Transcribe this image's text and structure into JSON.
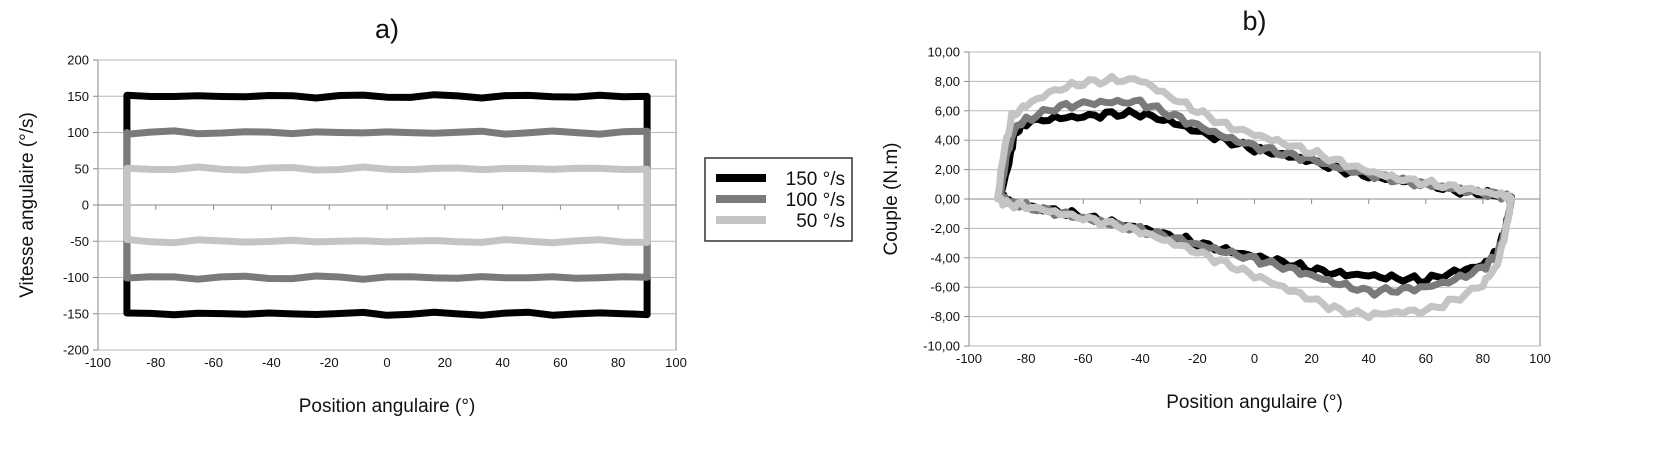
{
  "chart_data": [
    {
      "type": "line",
      "title": "a)",
      "xlabel": "Position angulaire (°)",
      "ylabel": "Vitesse angulaire (°/s)",
      "xlim": [
        -100,
        100
      ],
      "ylim": [
        -200,
        200
      ],
      "x_ticks": [
        -100,
        -80,
        -60,
        -40,
        -20,
        0,
        20,
        40,
        60,
        80,
        100
      ],
      "y_ticks": [
        -200,
        -150,
        -100,
        -50,
        0,
        50,
        100,
        150,
        200
      ],
      "x_tick_labels": [
        "-100",
        "-80",
        "-60",
        "-40",
        "-20",
        "0",
        "20",
        "40",
        "60",
        "80",
        "100"
      ],
      "y_tick_labels": [
        "-200",
        "-150",
        "-100",
        "-50",
        "0",
        "50",
        "100",
        "150",
        "200"
      ],
      "grid": true,
      "legend_position": "right",
      "series": [
        {
          "name": "150 °/s",
          "color": "#000000",
          "points": [
            [
              -90,
              150
            ],
            [
              90,
              150
            ],
            [
              90,
              -150
            ],
            [
              -90,
              -150
            ],
            [
              -90,
              150
            ]
          ]
        },
        {
          "name": "100 °/s",
          "color": "#7a7a7a",
          "points": [
            [
              -90,
              100
            ],
            [
              90,
              100
            ],
            [
              90,
              -100
            ],
            [
              -90,
              -100
            ],
            [
              -90,
              100
            ]
          ]
        },
        {
          "name": "50 °/s",
          "color": "#c4c4c4",
          "points": [
            [
              -90,
              50
            ],
            [
              90,
              50
            ],
            [
              90,
              -50
            ],
            [
              -90,
              -50
            ],
            [
              -90,
              50
            ]
          ]
        }
      ]
    },
    {
      "type": "line",
      "title": "b)",
      "xlabel": "Position angulaire (°)",
      "ylabel": "Couple (N.m)",
      "xlim": [
        -100,
        100
      ],
      "ylim": [
        -10,
        10
      ],
      "x_ticks": [
        -100,
        -80,
        -60,
        -40,
        -20,
        0,
        20,
        40,
        60,
        80,
        100
      ],
      "y_ticks": [
        -10,
        -8,
        -6,
        -4,
        -2,
        0,
        2,
        4,
        6,
        8,
        10
      ],
      "x_tick_labels": [
        "-100",
        "-80",
        "-60",
        "-40",
        "-20",
        "0",
        "20",
        "40",
        "60",
        "80",
        "100"
      ],
      "y_tick_labels": [
        "-10,00",
        "-8,00",
        "-6,00",
        "-4,00",
        "-2,00",
        "0,00",
        "2,00",
        "4,00",
        "6,00",
        "8,00",
        "10,00"
      ],
      "grid": true,
      "series": [
        {
          "name": "150 °/s",
          "color": "#000000",
          "points": [
            [
              -89,
              0.2
            ],
            [
              -86,
              2.5
            ],
            [
              -84,
              4.5
            ],
            [
              -80,
              5.2
            ],
            [
              -70,
              5.5
            ],
            [
              -60,
              5.6
            ],
            [
              -50,
              5.8
            ],
            [
              -40,
              5.8
            ],
            [
              -30,
              5.3
            ],
            [
              -20,
              4.6
            ],
            [
              -10,
              4.0
            ],
            [
              0,
              3.4
            ],
            [
              10,
              3.0
            ],
            [
              20,
              2.6
            ],
            [
              30,
              2.0
            ],
            [
              40,
              1.6
            ],
            [
              50,
              1.3
            ],
            [
              60,
              1.0
            ],
            [
              70,
              0.6
            ],
            [
              80,
              0.4
            ],
            [
              88,
              0.2
            ],
            [
              90,
              0.0
            ],
            [
              88,
              -2.0
            ],
            [
              85,
              -3.6
            ],
            [
              80,
              -4.5
            ],
            [
              70,
              -5.0
            ],
            [
              60,
              -5.5
            ],
            [
              50,
              -5.4
            ],
            [
              40,
              -5.2
            ],
            [
              30,
              -5.1
            ],
            [
              20,
              -4.8
            ],
            [
              10,
              -4.3
            ],
            [
              0,
              -3.9
            ],
            [
              -10,
              -3.5
            ],
            [
              -20,
              -3.0
            ],
            [
              -30,
              -2.5
            ],
            [
              -40,
              -2.0
            ],
            [
              -50,
              -1.6
            ],
            [
              -60,
              -1.2
            ],
            [
              -70,
              -0.8
            ],
            [
              -80,
              -0.5
            ],
            [
              -86,
              -0.2
            ],
            [
              -89,
              0.2
            ]
          ]
        },
        {
          "name": "100 °/s",
          "color": "#7a7a7a",
          "points": [
            [
              -89,
              0.3
            ],
            [
              -87,
              2.8
            ],
            [
              -84,
              4.8
            ],
            [
              -80,
              5.4
            ],
            [
              -70,
              6.2
            ],
            [
              -60,
              6.5
            ],
            [
              -50,
              6.6
            ],
            [
              -40,
              6.6
            ],
            [
              -30,
              5.8
            ],
            [
              -20,
              5.0
            ],
            [
              -10,
              4.2
            ],
            [
              0,
              3.6
            ],
            [
              10,
              3.1
            ],
            [
              20,
              2.7
            ],
            [
              30,
              2.1
            ],
            [
              40,
              1.7
            ],
            [
              50,
              1.3
            ],
            [
              60,
              1.0
            ],
            [
              70,
              0.7
            ],
            [
              80,
              0.4
            ],
            [
              88,
              0.2
            ],
            [
              90,
              0.0
            ],
            [
              88,
              -2.0
            ],
            [
              85,
              -3.8
            ],
            [
              80,
              -4.7
            ],
            [
              70,
              -5.5
            ],
            [
              60,
              -6.0
            ],
            [
              50,
              -6.2
            ],
            [
              40,
              -6.3
            ],
            [
              30,
              -5.8
            ],
            [
              20,
              -5.2
            ],
            [
              10,
              -4.6
            ],
            [
              0,
              -4.1
            ],
            [
              -10,
              -3.6
            ],
            [
              -20,
              -3.1
            ],
            [
              -30,
              -2.6
            ],
            [
              -40,
              -2.1
            ],
            [
              -50,
              -1.7
            ],
            [
              -60,
              -1.3
            ],
            [
              -70,
              -0.9
            ],
            [
              -80,
              -0.5
            ],
            [
              -86,
              -0.2
            ],
            [
              -89,
              0.3
            ]
          ]
        },
        {
          "name": "50 °/s",
          "color": "#c4c4c4",
          "points": [
            [
              -90,
              0.0
            ],
            [
              -88,
              3.0
            ],
            [
              -85,
              5.6
            ],
            [
              -80,
              6.4
            ],
            [
              -70,
              7.4
            ],
            [
              -60,
              7.9
            ],
            [
              -50,
              8.1
            ],
            [
              -40,
              8.1
            ],
            [
              -30,
              7.0
            ],
            [
              -20,
              6.0
            ],
            [
              -10,
              5.0
            ],
            [
              0,
              4.4
            ],
            [
              10,
              3.8
            ],
            [
              20,
              3.2
            ],
            [
              30,
              2.5
            ],
            [
              40,
              1.9
            ],
            [
              50,
              1.4
            ],
            [
              60,
              1.1
            ],
            [
              70,
              0.8
            ],
            [
              80,
              0.5
            ],
            [
              88,
              0.2
            ],
            [
              90,
              0.0
            ],
            [
              88,
              -2.2
            ],
            [
              85,
              -4.5
            ],
            [
              80,
              -5.8
            ],
            [
              70,
              -6.9
            ],
            [
              60,
              -7.6
            ],
            [
              50,
              -7.7
            ],
            [
              40,
              -7.9
            ],
            [
              30,
              -7.6
            ],
            [
              20,
              -6.8
            ],
            [
              10,
              -6.0
            ],
            [
              0,
              -5.2
            ],
            [
              -10,
              -4.4
            ],
            [
              -20,
              -3.6
            ],
            [
              -30,
              -2.9
            ],
            [
              -40,
              -2.2
            ],
            [
              -50,
              -1.7
            ],
            [
              -60,
              -1.3
            ],
            [
              -70,
              -0.9
            ],
            [
              -80,
              -0.5
            ],
            [
              -87,
              -0.3
            ],
            [
              -90,
              0.0
            ]
          ]
        }
      ]
    }
  ]
}
